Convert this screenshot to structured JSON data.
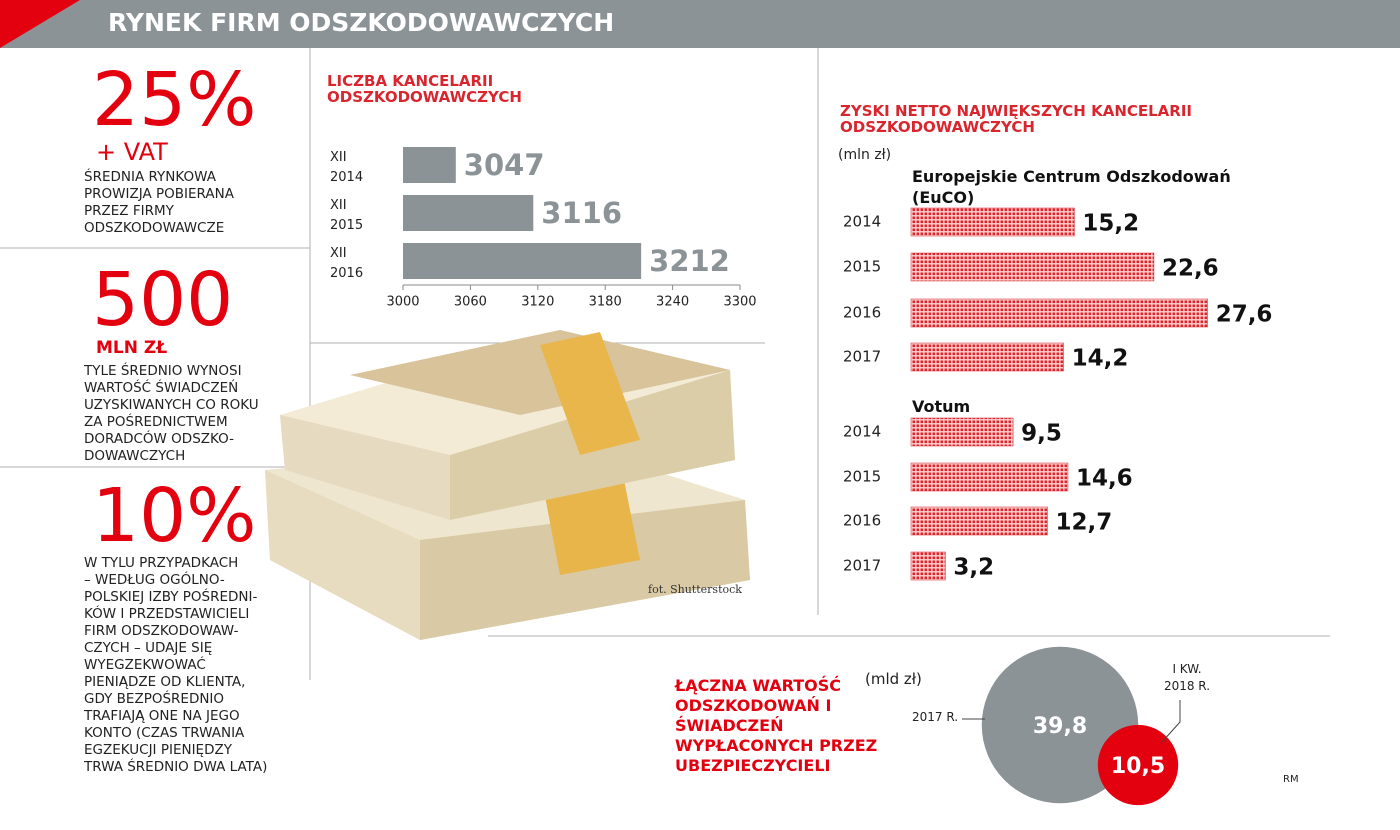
{
  "header": {
    "title": "RYNEK FIRM ODSZKODOWAWCZYCH"
  },
  "stats": [
    {
      "value": "25%",
      "unit": "+ VAT",
      "lines": [
        "ŚREDNIA RYNKOWA",
        "PROWIZJA POBIERANA",
        "PRZEZ FIRMY",
        "ODSZKODOWAWCZE"
      ]
    },
    {
      "value": "500",
      "unit": "MLN ZŁ",
      "lines": [
        "TYLE ŚREDNIO WYNOSI",
        "WARTOŚĆ ŚWIADCZEŃ",
        "UZYSKIWANYCH CO ROKU",
        "ZA POŚREDNICTWEM",
        "DORADCÓW ODSZKO-",
        "DOWAWCZYCH"
      ]
    },
    {
      "value": "10%",
      "lines": [
        "W TYLU PRZYPADKACH",
        "– WEDŁUG OGÓLNO-",
        "POLSKIEJ IZBY POŚREDNI-",
        "KÓW I PRZEDSTAWICIELI",
        "FIRM ODSZKODOWAW-",
        "CZYCH – UDAJE SIĘ",
        "WYEGZEKWOWAĆ",
        "PIENIĄDZE OD KLIENTA,",
        "GDY BEZPOŚREDNIO",
        "TRAFIAJĄ ONE NA JEGO",
        "KONTO (CZAS TRWANIA",
        "EGZEKUCJI PIENIĘDZY",
        "TRWA ŚREDNIO DWA LATA)"
      ]
    }
  ],
  "chart_data": [
    {
      "type": "bar",
      "orientation": "horizontal",
      "title": "LICZBA KANCELARII ODSZKODOWAWCZYCH",
      "categories": [
        "XII 2014",
        "XII 2015",
        "XII 2016"
      ],
      "values": [
        3047,
        3116,
        3212
      ],
      "color": "#8c9397",
      "xlim": [
        3000,
        3300
      ],
      "xticks": [
        3000,
        3060,
        3120,
        3180,
        3240,
        3300
      ]
    },
    {
      "type": "dotbar",
      "title": "ZYSKI NETTO NAJWIĘKSZYCH KANCELARII ODSZKODOWAWCZYCH",
      "unit": "(mln zł)",
      "categories": [
        "2014",
        "2015",
        "2016",
        "2017"
      ],
      "series": [
        {
          "name": "Europejskie Centrum Odszkodowań (EuCO)",
          "color": "#d9262e",
          "values": [
            15.2,
            22.6,
            27.6,
            14.2
          ],
          "value_labels": [
            "15,2",
            "22,6",
            "27,6",
            "14,2"
          ]
        },
        {
          "name": "Votum",
          "color": "#d9262e",
          "values": [
            9.5,
            14.6,
            12.7,
            3.2
          ],
          "value_labels": [
            "9,5",
            "14,6",
            "12,7",
            "3,2"
          ]
        }
      ]
    },
    {
      "type": "bubble",
      "title": "ŁĄCZNA WARTOŚĆ ODSZKODOWAŃ I ŚWIADCZEŃ WYPŁACONYCH PRZEZ UBEZPIECZYCIELI",
      "unit": "(mld zł)",
      "categories": [
        "2017 R.",
        "I KW. 2018 R."
      ],
      "values": [
        39.8,
        10.5
      ],
      "value_labels": [
        "39,8",
        "10,5"
      ],
      "colors": [
        "#8c9397",
        "#e3000f"
      ]
    }
  ],
  "photo_credit": "fot. Shutterstock",
  "footer": "RM"
}
